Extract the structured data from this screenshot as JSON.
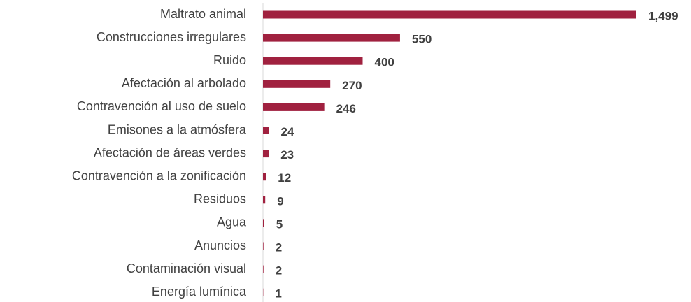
{
  "chart_data": {
    "type": "bar",
    "orientation": "horizontal",
    "categories": [
      "Maltrato animal",
      "Construcciones irregulares",
      "Ruido",
      "Afectación al arbolado",
      "Contravención al uso de suelo",
      "Emisones a la atmósfera",
      "Afectación de áreas verdes",
      "Contravención a la zonificación",
      "Residuos",
      "Agua",
      "Anuncios",
      "Contaminación visual",
      "Energía lumínica"
    ],
    "values": [
      1499,
      550,
      400,
      270,
      246,
      24,
      23,
      12,
      9,
      5,
      2,
      2,
      1
    ],
    "value_labels": [
      "1,499",
      "550",
      "400",
      "270",
      "246",
      "24",
      "23",
      "12",
      "9",
      "5",
      "2",
      "2",
      "1"
    ],
    "color": "#a0213f"
  }
}
